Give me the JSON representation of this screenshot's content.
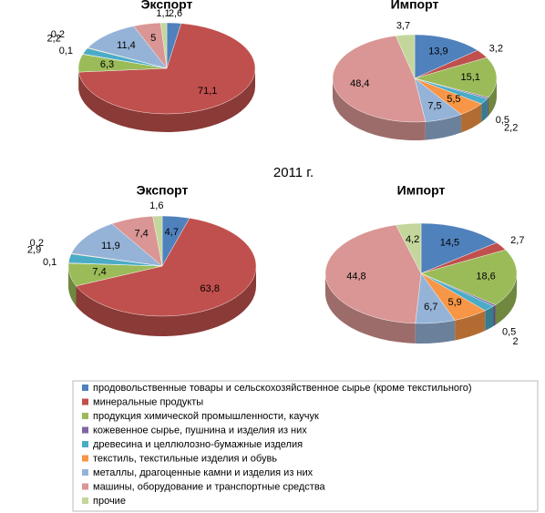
{
  "group_title": "2011 г.",
  "legend": {
    "labels": [
      "продовольственные товары и сельскохозяйственное сырье (кроме текстильного)",
      "минеральные продукты",
      "продукция химической промышленности, каучук",
      "кожевенное сырье, пушнина и изделия из них",
      "древесина и целлюлозно-бумажные изделия",
      "текстиль, текстильные изделия и обувь",
      "металлы, драгоценные камни и изделия из них",
      "машины, оборудование и транспортные средства",
      "прочие"
    ],
    "colors": [
      "#4f81bd",
      "#c0504d",
      "#9bbb59",
      "#8064a2",
      "#4bacc6",
      "#f79646",
      "#95b3d7",
      "#d99694",
      "#c3d69b"
    ]
  },
  "chart_data": [
    {
      "type": "pie",
      "title": "Экспорт",
      "values": [
        2.6,
        71.1,
        6.3,
        0.1,
        2.2,
        0.2,
        11.4,
        5,
        1.1
      ],
      "value_labels": [
        "2,6",
        "71,1",
        "6,3",
        "0,1",
        "2,2",
        "0,2",
        "11,4",
        "5",
        "1,1"
      ]
    },
    {
      "type": "pie",
      "title": "Импорт",
      "values": [
        13.9,
        3.2,
        15.1,
        0.5,
        2.2,
        5.5,
        7.5,
        48.4,
        3.7
      ],
      "value_labels": [
        "13,9",
        "3,2",
        "15,1",
        "0,5",
        "2,2",
        "5,5",
        "7,5",
        "48,4",
        "3,7"
      ]
    },
    {
      "type": "pie",
      "title": "Экспорт",
      "values": [
        4.7,
        63.8,
        7.4,
        0.1,
        2.9,
        0.2,
        11.9,
        7.4,
        1.6
      ],
      "value_labels": [
        "4,7",
        "63,8",
        "7,4",
        "0,1",
        "2,9",
        "0,2",
        "11,9",
        "7,4",
        "1,6"
      ]
    },
    {
      "type": "pie",
      "title": "Импорт",
      "values": [
        14.5,
        2.7,
        18.6,
        0.5,
        2,
        5.9,
        6.7,
        44.8,
        4.2
      ],
      "value_labels": [
        "14,5",
        "2,7",
        "18,6",
        "0,5",
        "2",
        "5,9",
        "6,7",
        "44,8",
        "4,2"
      ]
    }
  ]
}
